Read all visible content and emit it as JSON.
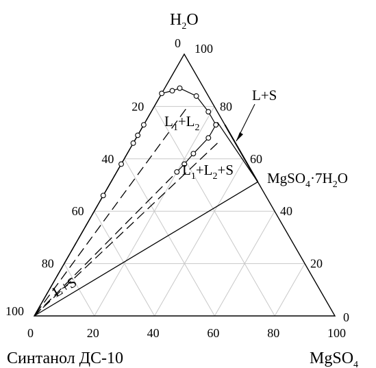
{
  "chart_data": {
    "type": "ternary phase diagram",
    "vertices": {
      "top": {
        "text": "H",
        "sub": "2",
        "tail": "O"
      },
      "left": {
        "text": "Синтанол ДС-10"
      },
      "right": {
        "text": "MgSO",
        "sub": "4",
        "tail": ""
      }
    },
    "bottom_axis_ticks": [
      "0",
      "20",
      "40",
      "60",
      "80",
      "100"
    ],
    "left_axis_ticks": [
      "0",
      "20",
      "40",
      "60",
      "80",
      "100"
    ],
    "right_axis_ticks": [
      "100",
      "80",
      "60",
      "40",
      "20",
      "0"
    ],
    "grid_step_percent": 20,
    "compound_label": {
      "text": "MgSO",
      "sub1": "4",
      "mid": "·7H",
      "sub2": "2",
      "tail": "O"
    },
    "regions": [
      {
        "id": "l1l2",
        "parts": [
          {
            "t": "L"
          },
          {
            "s": "1"
          },
          {
            "t": "+L"
          },
          {
            "s": "2"
          }
        ]
      },
      {
        "id": "l1l2s",
        "parts": [
          {
            "t": "L"
          },
          {
            "s": "1"
          },
          {
            "t": "+L"
          },
          {
            "s": "2"
          },
          {
            "t": "+S"
          }
        ]
      },
      {
        "id": "ls_top",
        "parts": [
          {
            "t": "L+S"
          }
        ]
      },
      {
        "id": "ls_bottom",
        "parts": [
          {
            "t": "L+S"
          }
        ]
      }
    ],
    "compound_point": {
      "water": 51.2,
      "mgso4": 48.8
    },
    "binodal_points_surfactant_water_mgso4": [
      [
        54,
        46,
        0
      ],
      [
        42,
        58,
        0
      ],
      [
        34,
        66,
        0
      ],
      [
        31,
        69,
        0
      ],
      [
        27,
        73,
        0
      ],
      [
        15,
        85,
        0
      ],
      [
        11,
        86,
        3
      ],
      [
        8,
        87,
        5
      ],
      [
        4,
        84,
        12
      ],
      [
        3,
        78,
        19
      ],
      [
        3,
        73,
        24
      ],
      [
        3,
        73,
        24
      ],
      [
        8,
        68,
        24
      ],
      [
        16,
        62,
        22
      ],
      [
        21,
        58,
        21
      ],
      [
        25,
        55,
        20
      ]
    ],
    "tie_lines_dashed": [
      {
        "from": [
          48,
          52,
          0
        ],
        "to": [
          100,
          0,
          0
        ]
      },
      {
        "from": [
          39,
          61,
          0
        ],
        "to": [
          97,
          3,
          0
        ]
      },
      {
        "from": [
          22,
          78,
          0
        ],
        "to": [
          100,
          0,
          0
        ]
      },
      {
        "from": [
          10,
          79,
          11
        ],
        "to": [
          100,
          0,
          0
        ]
      },
      {
        "from": [
          6,
          66,
          28
        ],
        "to": [
          100,
          0,
          0
        ]
      }
    ],
    "three_phase_triangle": {
      "vertices": [
        [
          100,
          0,
          0
        ],
        [
          25,
          55,
          20
        ],
        [
          0,
          51.2,
          48.8
        ]
      ]
    },
    "solid_lines": [
      {
        "from": [
          100,
          0,
          0
        ],
        "to": [
          0,
          51.2,
          48.8
        ]
      },
      {
        "from": [
          2,
          74,
          24
        ],
        "to": [
          0,
          51.2,
          48.8
        ]
      }
    ]
  }
}
